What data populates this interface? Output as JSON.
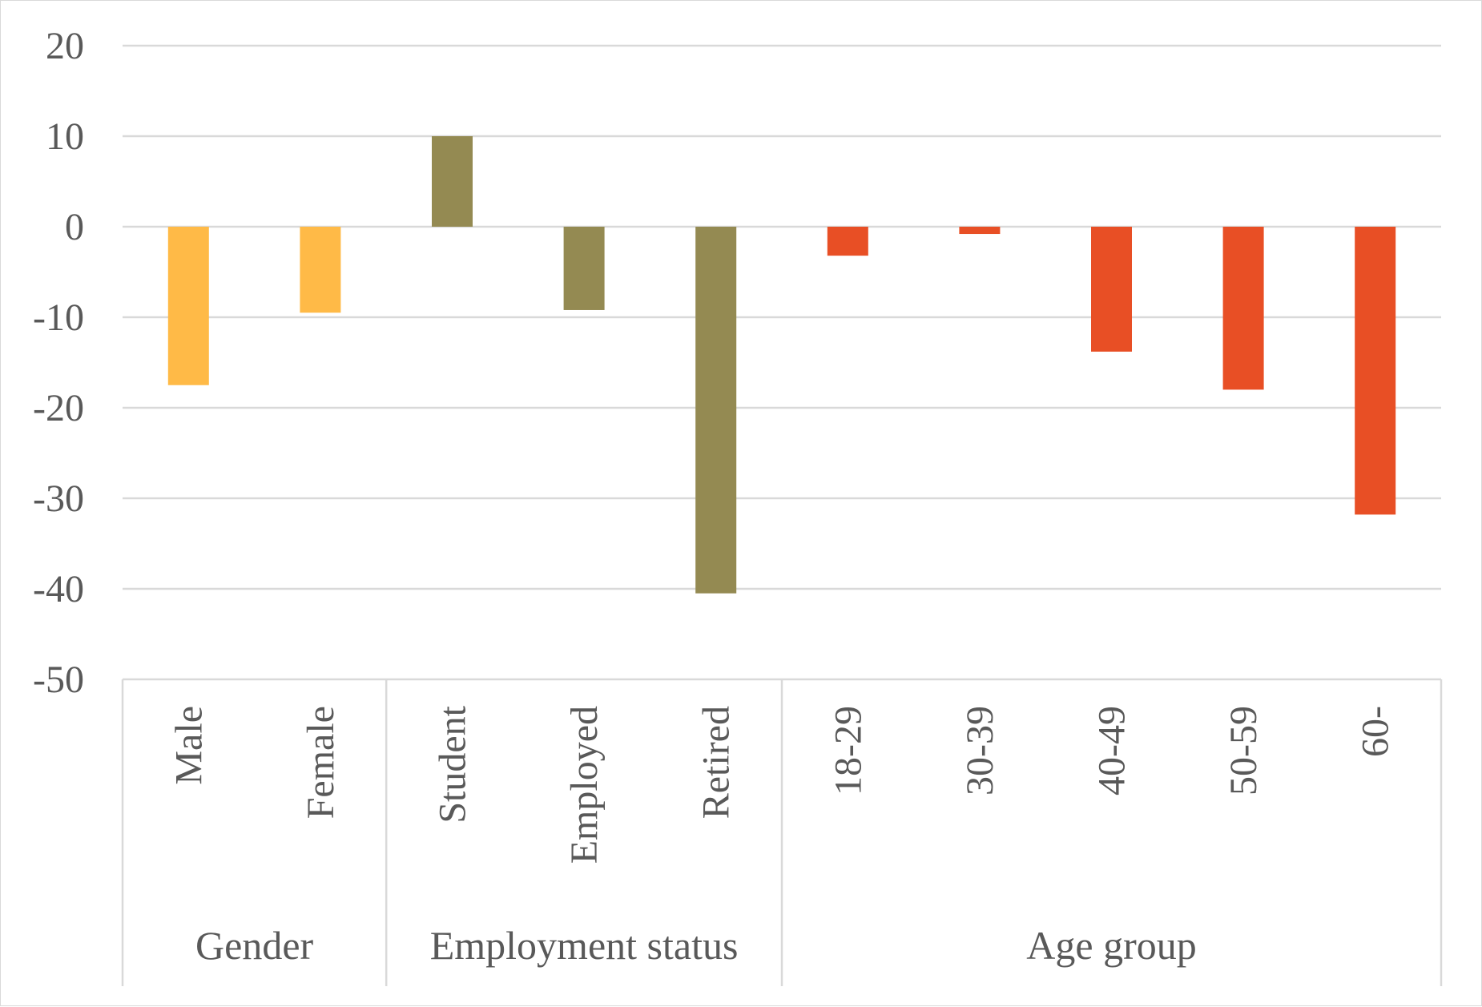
{
  "chart_data": {
    "type": "bar",
    "title": "",
    "xlabel": "",
    "ylabel": "",
    "ylim": [
      -50,
      20
    ],
    "yticks": [
      20,
      10,
      0,
      -10,
      -20,
      -30,
      -40,
      -50
    ],
    "grid": true,
    "legend": "none",
    "categories": [
      "Male",
      "Female",
      "Student",
      "Employed",
      "Retired",
      "18-29",
      "30-39",
      "40-49",
      "50-59",
      "60-"
    ],
    "values": [
      -17.5,
      -9.5,
      10,
      -9.2,
      -40.5,
      -3.2,
      -0.8,
      -13.8,
      -18,
      -31.8
    ],
    "groups": [
      {
        "name": "Gender",
        "categories": [
          "Male",
          "Female"
        ],
        "color": "#FFBA47"
      },
      {
        "name": "Employment status",
        "categories": [
          "Student",
          "Employed",
          "Retired"
        ],
        "color": "#948A52"
      },
      {
        "name": "Age group",
        "categories": [
          "18-29",
          "30-39",
          "40-49",
          "50-59",
          "60-"
        ],
        "color": "#E84F25"
      }
    ],
    "colors": {
      "gridline": "#d9d9d9",
      "text": "#595959"
    }
  }
}
